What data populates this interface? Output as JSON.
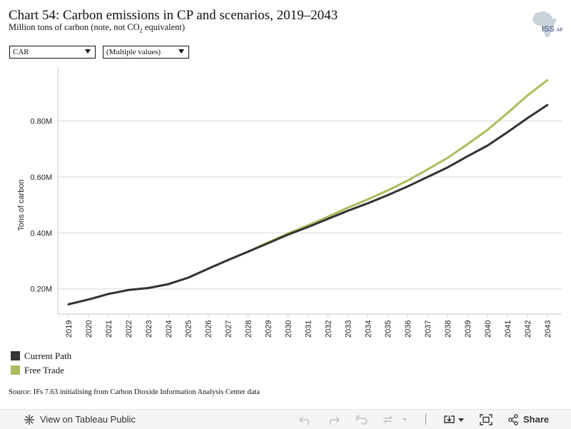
{
  "header": {
    "title": "Chart 54: Carbon emissions in CP and scenarios, 2019–2043",
    "subtitle_main": "Million tons of carbon (note, not CO",
    "subtitle_sub": "2",
    "subtitle_tail": " equivalent)",
    "logo_text": "ISS",
    "logo_text_small": "AF"
  },
  "filters": {
    "country": "CAR",
    "scenario": "(Multiple values)"
  },
  "chart_data": {
    "type": "line",
    "title": "Chart 54: Carbon emissions in CP and scenarios, 2019–2043",
    "xlabel": "",
    "ylabel": "Tons of carbon",
    "x": [
      "2019",
      "2020",
      "2021",
      "2022",
      "2023",
      "2024",
      "2025",
      "2026",
      "2027",
      "2028",
      "2029",
      "2030",
      "2031",
      "2032",
      "2033",
      "2034",
      "2035",
      "2036",
      "2037",
      "2038",
      "2039",
      "2040",
      "2041",
      "2042",
      "2043"
    ],
    "yticks": [
      0.2,
      0.4,
      0.6,
      0.8
    ],
    "ytick_labels": [
      "0.20M",
      "0.40M",
      "0.60M",
      "0.80M"
    ],
    "ylim": [
      0.11,
      0.99
    ],
    "grid": true,
    "legend_position": "bottom-left",
    "series": [
      {
        "name": "Current Path",
        "color": "#333333",
        "values": [
          0.145,
          0.162,
          0.182,
          0.196,
          0.203,
          0.217,
          0.24,
          0.272,
          0.303,
          0.333,
          0.363,
          0.394,
          0.421,
          0.45,
          0.479,
          0.506,
          0.535,
          0.566,
          0.6,
          0.634,
          0.674,
          0.712,
          0.76,
          0.81,
          0.857
        ]
      },
      {
        "name": "Free Trade",
        "color": "#a9bd5c",
        "values": [
          0.145,
          0.162,
          0.182,
          0.196,
          0.203,
          0.217,
          0.24,
          0.272,
          0.303,
          0.333,
          0.366,
          0.398,
          0.427,
          0.458,
          0.49,
          0.52,
          0.552,
          0.587,
          0.627,
          0.668,
          0.717,
          0.768,
          0.828,
          0.891,
          0.946
        ]
      }
    ]
  },
  "source": "Source: IFs 7.63 initialising from Carbon Dioxide Information Analysis Center data",
  "toolbar": {
    "view_label": "View on Tableau Public",
    "share_label": "Share"
  }
}
